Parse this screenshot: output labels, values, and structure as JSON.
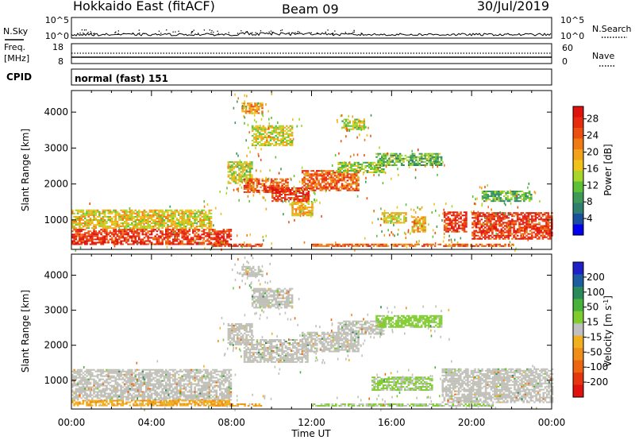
{
  "header": {
    "radar": "Hokkaido East (fitACF)",
    "beam": "Beam 09",
    "date": "30/Jul/2019"
  },
  "status_panels": {
    "nsky": {
      "label": "N.Sky",
      "ticks": [
        "10^5",
        "10^0"
      ]
    },
    "nsearch": {
      "label": "N.Search",
      "ticks": [
        "10^5",
        "10^0"
      ]
    },
    "freq": {
      "label_1": "Freq.",
      "label_2": "[MHz]",
      "ticks": [
        "18",
        "8"
      ]
    },
    "nave": {
      "label": "Nave",
      "ticks": [
        "60",
        "0"
      ]
    },
    "cpid": {
      "label": "CPID",
      "value": "normal (fast) 151"
    }
  },
  "colors": {
    "power_scale": [
      "#0000ee",
      "#1a4fa0",
      "#2e7f6e",
      "#3f9a58",
      "#5cc038",
      "#a6d62a",
      "#f0c21a",
      "#f2a21a",
      "#f07b14",
      "#ec5010",
      "#e62b0e",
      "#e0120e"
    ],
    "velocity_scale": [
      "#2020c8",
      "#1c5ca0",
      "#2a8a5a",
      "#48b23a",
      "#7fcc2e",
      "#c0c0c0",
      "#f0b020",
      "#ee8e18",
      "#ec6612",
      "#e6360e",
      "#e0120e"
    ],
    "ground_scatter": "#c0c0b8"
  },
  "chart_data": [
    {
      "type": "heatmap",
      "panel": "power",
      "xlabel": "Time UT",
      "ylabel": "Slant Range [km]",
      "x_ticks": [
        "00:00",
        "04:00",
        "08:00",
        "12:00",
        "16:00",
        "20:00",
        "00:00"
      ],
      "x_range_hours": [
        0,
        24
      ],
      "y_ticks": [
        1000,
        2000,
        3000,
        4000
      ],
      "ylim": [
        180,
        4600
      ],
      "colorbar": {
        "label": "Power [dB]",
        "ticks": [
          4,
          8,
          12,
          16,
          20,
          24,
          28
        ],
        "range": [
          0,
          31
        ]
      },
      "echo_regions": [
        {
          "t0": 0.0,
          "t1": 8.0,
          "r0": 300,
          "r1": 750,
          "p": 27
        },
        {
          "t0": 0.0,
          "t1": 7.0,
          "r0": 750,
          "r1": 1250,
          "p": 17
        },
        {
          "t0": 7.8,
          "t1": 9.0,
          "r0": 2000,
          "r1": 2600,
          "p": 15
        },
        {
          "t0": 8.6,
          "t1": 10.8,
          "r0": 1750,
          "r1": 2150,
          "p": 25
        },
        {
          "t0": 10.0,
          "t1": 11.8,
          "r0": 1500,
          "r1": 1900,
          "p": 28
        },
        {
          "t0": 11.5,
          "t1": 14.3,
          "r0": 1800,
          "r1": 2350,
          "p": 24
        },
        {
          "t0": 13.3,
          "t1": 15.6,
          "r0": 2300,
          "r1": 2600,
          "p": 13
        },
        {
          "t0": 15.2,
          "t1": 18.5,
          "r0": 2500,
          "r1": 2850,
          "p": 11
        },
        {
          "t0": 8.5,
          "t1": 9.5,
          "r0": 3950,
          "r1": 4250,
          "p": 20
        },
        {
          "t0": 9.0,
          "t1": 11.0,
          "r0": 3050,
          "r1": 3600,
          "p": 16
        },
        {
          "t0": 13.5,
          "t1": 14.6,
          "r0": 3500,
          "r1": 3800,
          "p": 14
        },
        {
          "t0": 11.0,
          "t1": 12.0,
          "r0": 1100,
          "r1": 1500,
          "p": 18
        },
        {
          "t0": 15.5,
          "t1": 16.7,
          "r0": 900,
          "r1": 1200,
          "p": 16
        },
        {
          "t0": 17.0,
          "t1": 17.7,
          "r0": 650,
          "r1": 1100,
          "p": 19
        },
        {
          "t0": 18.6,
          "t1": 19.7,
          "r0": 650,
          "r1": 1200,
          "p": 27
        },
        {
          "t0": 20.0,
          "t1": 24.0,
          "r0": 450,
          "r1": 1200,
          "p": 27
        },
        {
          "t0": 20.5,
          "t1": 23.0,
          "r0": 1500,
          "r1": 1800,
          "p": 11
        },
        {
          "t0": 7.0,
          "t1": 9.5,
          "r0": 250,
          "r1": 330,
          "p": 26
        },
        {
          "t0": 12.0,
          "t1": 22.0,
          "r0": 250,
          "r1": 330,
          "p": 24
        }
      ]
    },
    {
      "type": "heatmap",
      "panel": "velocity",
      "xlabel": "Time UT",
      "ylabel": "Slant Range [km]",
      "x_ticks": [
        "00:00",
        "04:00",
        "08:00",
        "12:00",
        "16:00",
        "20:00",
        "00:00"
      ],
      "x_range_hours": [
        0,
        24
      ],
      "y_ticks": [
        1000,
        2000,
        3000,
        4000
      ],
      "ylim": [
        180,
        4600
      ],
      "colorbar": {
        "label": "Velocity [m s^-1]",
        "ticks": [
          "200",
          "100",
          "50",
          "15",
          "-15",
          "-50",
          "-100",
          "-200"
        ],
        "range": [
          -250,
          250
        ]
      },
      "echo_regions": [
        {
          "t0": 0.0,
          "t1": 8.0,
          "r0": 420,
          "r1": 1300,
          "v": 0,
          "ground": true
        },
        {
          "t0": 0.0,
          "t1": 8.0,
          "r0": 260,
          "r1": 420,
          "v": -60
        },
        {
          "t0": 7.8,
          "t1": 9.0,
          "r0": 2000,
          "r1": 2600,
          "v": 0,
          "ground": true
        },
        {
          "t0": 8.6,
          "t1": 11.8,
          "r0": 1500,
          "r1": 2150,
          "v": 0,
          "ground": true
        },
        {
          "t0": 11.5,
          "t1": 14.3,
          "r0": 1800,
          "r1": 2350,
          "v": 0,
          "ground": true
        },
        {
          "t0": 13.3,
          "t1": 15.6,
          "r0": 2300,
          "r1": 2700,
          "v": 0,
          "ground": true
        },
        {
          "t0": 15.2,
          "t1": 18.5,
          "r0": 2500,
          "r1": 2850,
          "v": 40
        },
        {
          "t0": 8.5,
          "t1": 9.5,
          "r0": 3950,
          "r1": 4250,
          "v": 0,
          "ground": true
        },
        {
          "t0": 9.0,
          "t1": 11.0,
          "r0": 3050,
          "r1": 3600,
          "v": 0,
          "ground": true
        },
        {
          "t0": 15.0,
          "t1": 18.0,
          "r0": 700,
          "r1": 1100,
          "v": 30
        },
        {
          "t0": 18.5,
          "t1": 24.0,
          "r0": 350,
          "r1": 1300,
          "v": 0,
          "ground": true
        },
        {
          "t0": 12.0,
          "t1": 21.0,
          "r0": 250,
          "r1": 330,
          "v": 25
        },
        {
          "t0": 7.0,
          "t1": 9.5,
          "r0": 250,
          "r1": 330,
          "v": -70
        }
      ]
    }
  ]
}
